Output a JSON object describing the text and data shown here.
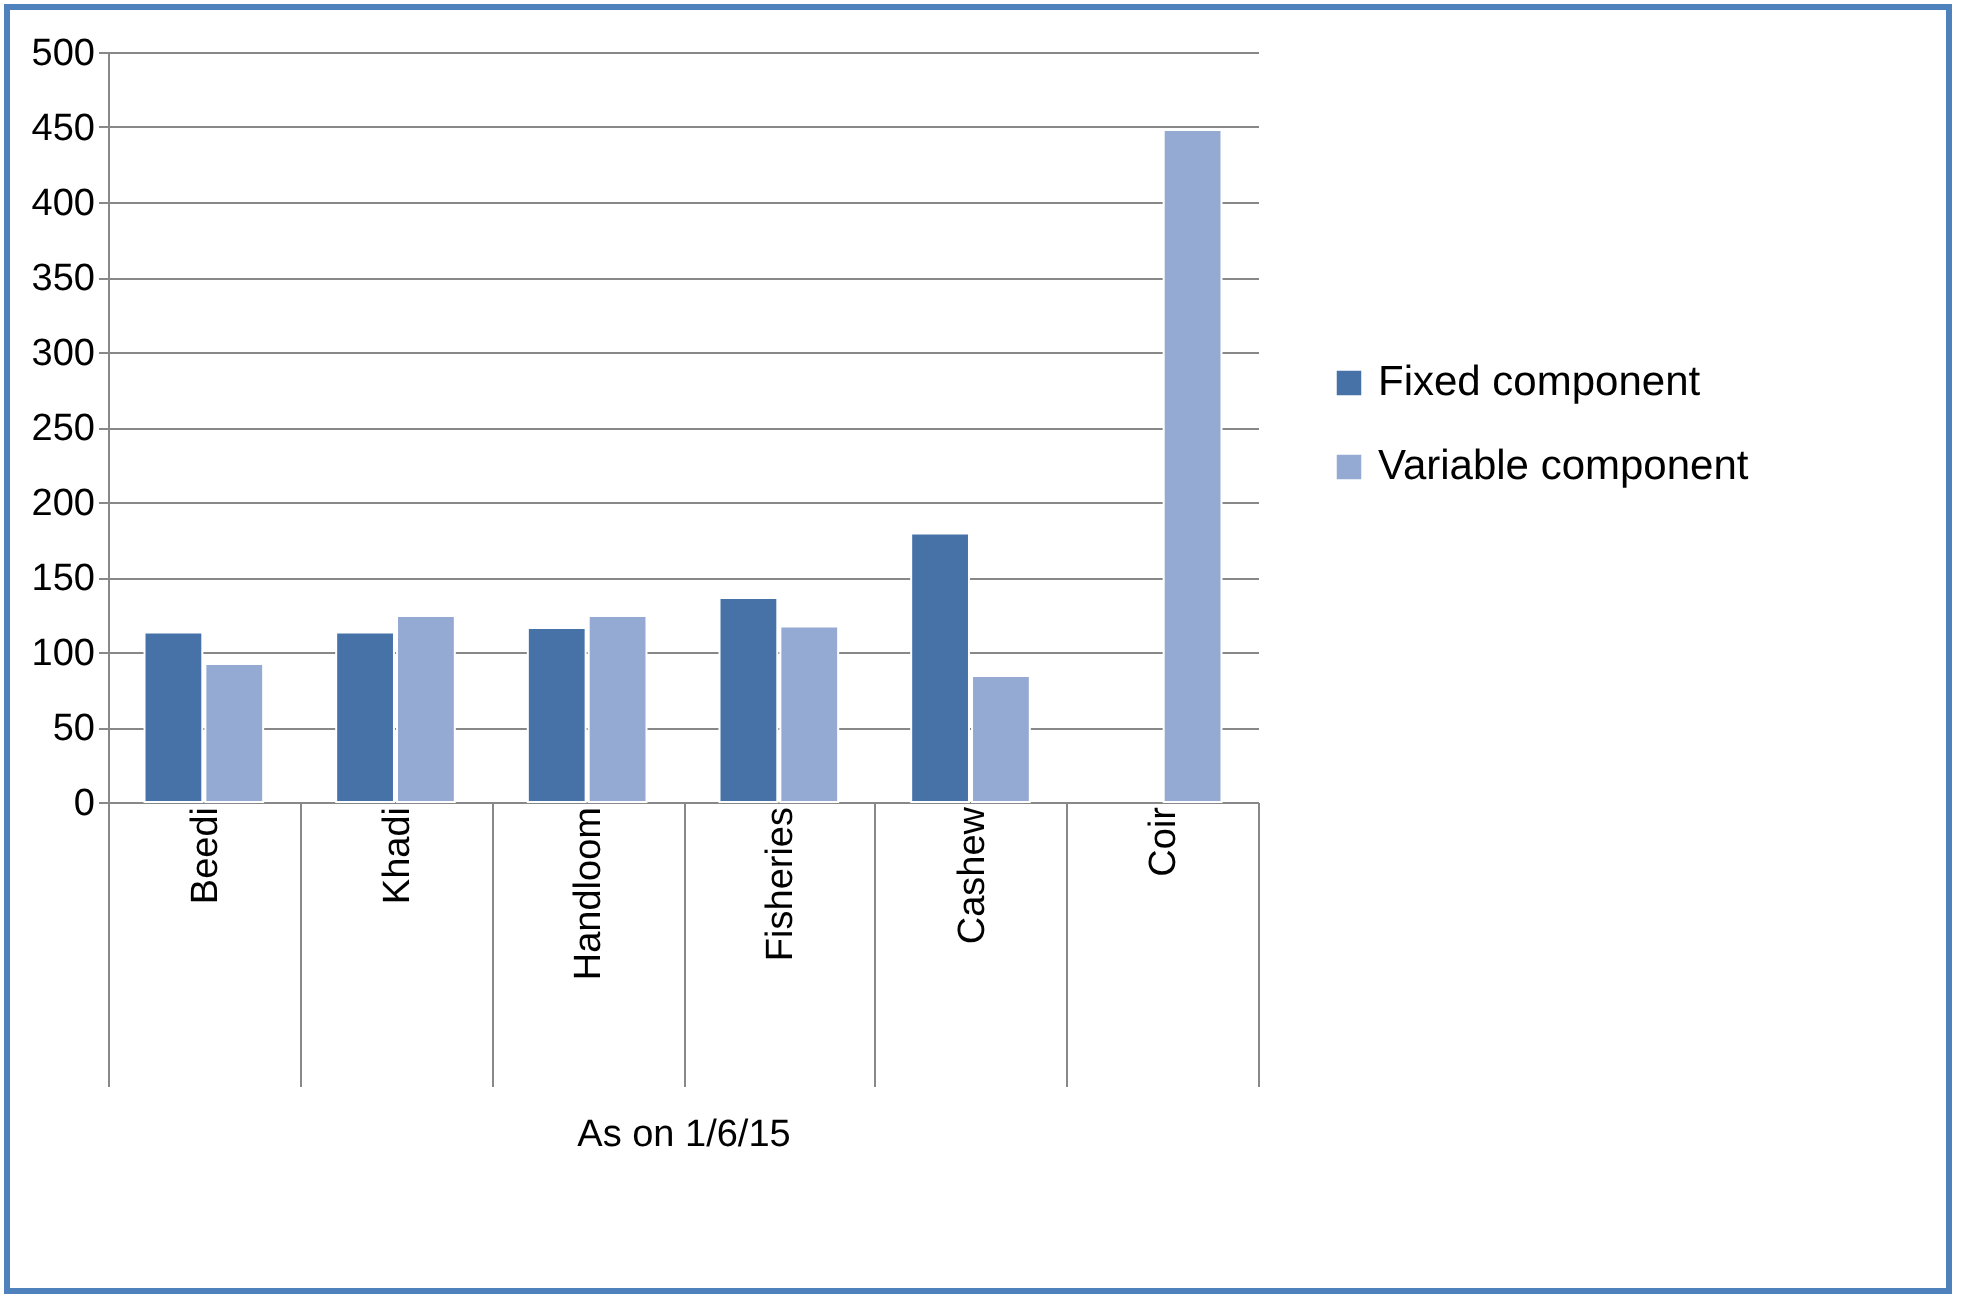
{
  "chart_data": {
    "type": "bar",
    "xlabel": "As on 1/6/15",
    "categories": [
      "Beedi",
      "Khadi",
      "Handloom",
      "Fisheries",
      "Cashew",
      "Coir"
    ],
    "series": [
      {
        "name": "Fixed component",
        "color": "#4672a8",
        "values": [
          113,
          113,
          116,
          136,
          179,
          null
        ]
      },
      {
        "name": "Variable component",
        "color": "#95aad3",
        "values": [
          92,
          124,
          124,
          117,
          84,
          448
        ]
      }
    ],
    "ylim": [
      0,
      500
    ],
    "yticks": [
      0,
      50,
      100,
      150,
      200,
      250,
      300,
      350,
      400,
      450,
      500
    ],
    "grid": "y",
    "legend": "right"
  }
}
